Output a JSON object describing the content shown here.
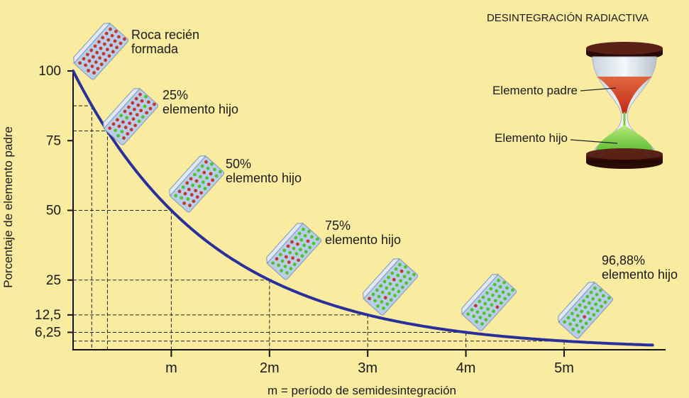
{
  "chart_data": {
    "type": "line",
    "title": "DESINTEGRACIÓN RADIACTIVA",
    "xlabel": "m = período de semidesintegración",
    "ylabel": "Porcentaje de elemento padre",
    "x_unit": "m",
    "x_range": [
      0,
      5.9
    ],
    "y_range": [
      0,
      100
    ],
    "x_ticks": [
      {
        "value": 1,
        "label": "m"
      },
      {
        "value": 2,
        "label": "2m"
      },
      {
        "value": 3,
        "label": "3m"
      },
      {
        "value": 4,
        "label": "4m"
      },
      {
        "value": 5,
        "label": "5m"
      }
    ],
    "y_ticks": [
      {
        "value": 100,
        "label": "100"
      },
      {
        "value": 75,
        "label": "75"
      },
      {
        "value": 50,
        "label": "50"
      },
      {
        "value": 25,
        "label": "25"
      },
      {
        "value": 12.5,
        "label": "12,5"
      },
      {
        "value": 6.25,
        "label": "6,25"
      }
    ],
    "series": [
      {
        "color": "#2b2f9c",
        "formula": "100 * 0.5^(x/m)"
      }
    ],
    "reference_points": [
      {
        "x": 0.19,
        "y": 87.5
      },
      {
        "x": 0.35,
        "y": 78.5
      },
      {
        "x": 1,
        "y": 50
      },
      {
        "x": 2,
        "y": 25
      },
      {
        "x": 3,
        "y": 12.5
      },
      {
        "x": 4,
        "y": 6.25
      },
      {
        "x": 5,
        "y": 3.12
      }
    ],
    "rock_samples": [
      {
        "label_lines": [
          "Roca recién",
          "formada"
        ],
        "daughter_fraction": 0
      },
      {
        "label_lines": [
          "25%",
          "elemento hijo"
        ],
        "daughter_fraction": 0.25
      },
      {
        "label_lines": [
          "50%",
          "elemento hijo"
        ],
        "daughter_fraction": 0.5
      },
      {
        "label_lines": [
          "75%",
          "elemento hijo"
        ],
        "daughter_fraction": 0.75
      },
      {
        "label_lines": [],
        "daughter_fraction": 0.875
      },
      {
        "label_lines": [],
        "daughter_fraction": 0.9375
      },
      {
        "label_lines": [
          "96,88%",
          "elemento hijo"
        ],
        "daughter_fraction": 0.9688
      }
    ],
    "hourglass": {
      "parent_label": "Elemento padre",
      "daughter_label": "Elemento hijo"
    },
    "colors": {
      "background": "#f9eca0",
      "curve": "#2b2f9c",
      "parent_dot": "#c0392b",
      "daughter_dot": "#4ec32c",
      "crystal": "#b9cde8"
    },
    "grid": false
  }
}
